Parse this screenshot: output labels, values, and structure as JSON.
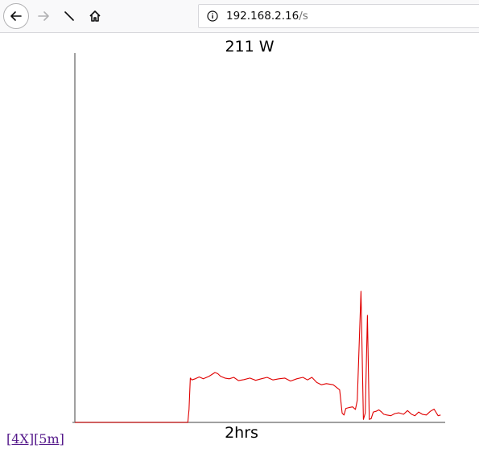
{
  "browser": {
    "url_host": "192.168.2.16",
    "url_path": "/s"
  },
  "page": {
    "title": "211 W",
    "x_label": "2hrs",
    "links": [
      {
        "label": "[4X]"
      },
      {
        "label": "[5m]"
      }
    ]
  },
  "chart_data": {
    "type": "line",
    "title": "211 W",
    "xlabel": "2hrs",
    "ylabel": "",
    "x_range": [
      0,
      120
    ],
    "y_range": [
      0,
      1000
    ],
    "grid": false,
    "series": [
      {
        "color": "#e00000",
        "x": [
          0,
          30,
          36.6,
          37.0,
          37.4,
          37.9,
          39.0,
          40.3,
          41.6,
          43.5,
          45.4,
          46.3,
          47.2,
          48.6,
          50.0,
          51.5,
          53.0,
          54.8,
          56.7,
          58.6,
          60.4,
          62.3,
          64.2,
          66.1,
          68.0,
          69.9,
          71.9,
          73.9,
          75.4,
          76.8,
          78.4,
          79.9,
          81.5,
          83.7,
          85.8,
          86.6,
          87.2,
          87.8,
          88.8,
          90.0,
          90.9,
          91.5,
          92.7,
          93.5,
          94.1,
          94.8,
          95.4,
          96.0,
          96.7,
          97.6,
          98.5,
          99.4,
          100.1,
          101.1,
          102.4,
          103.7,
          105.0,
          106.5,
          107.8,
          109.1,
          110.2,
          111.4,
          112.6,
          113.9,
          115.2,
          116.4,
          117.7,
          118.5
        ],
        "y": [
          0,
          0,
          0,
          35,
          120,
          115,
          118,
          123,
          118,
          125,
          135,
          132,
          125,
          120,
          118,
          122,
          113,
          116,
          120,
          114,
          118,
          122,
          115,
          118,
          120,
          112,
          118,
          122,
          115,
          122,
          108,
          102,
          105,
          102,
          88,
          25,
          20,
          38,
          40,
          42,
          35,
          60,
          355,
          8,
          25,
          290,
          8,
          10,
          28,
          30,
          34,
          28,
          22,
          20,
          18,
          24,
          26,
          22,
          32,
          22,
          18,
          28,
          22,
          20,
          30,
          36,
          18,
          20
        ]
      }
    ]
  }
}
